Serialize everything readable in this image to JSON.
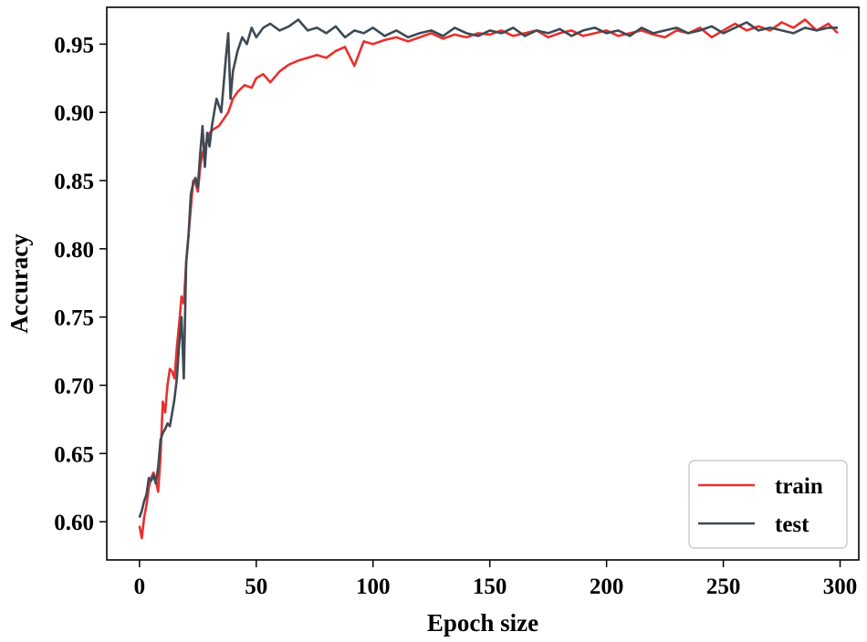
{
  "chart_data": {
    "type": "line",
    "title": "",
    "xlabel": "Epoch size",
    "ylabel": "Accuracy",
    "xlim": [
      -14,
      308
    ],
    "ylim": [
      0.572,
      0.977
    ],
    "xticks": [
      0,
      50,
      100,
      150,
      200,
      250,
      300
    ],
    "xtick_labels": [
      "0",
      "50",
      "100",
      "150",
      "200",
      "250",
      "300"
    ],
    "yticks": [
      0.6,
      0.65,
      0.7,
      0.75,
      0.8,
      0.85,
      0.9,
      0.95
    ],
    "ytick_labels": [
      "0.60",
      "0.65",
      "0.70",
      "0.75",
      "0.80",
      "0.85",
      "0.90",
      "0.95"
    ],
    "grid": false,
    "legend_position": "lower-right",
    "series": [
      {
        "name": "train",
        "color": "#e8302e",
        "x": [
          0,
          1,
          2,
          3,
          4,
          5,
          6,
          7,
          8,
          9,
          10,
          11,
          12,
          13,
          14,
          15,
          16,
          17,
          18,
          19,
          20,
          21,
          22,
          23,
          24,
          25,
          26,
          27,
          28,
          29,
          30,
          32,
          34,
          36,
          38,
          40,
          42,
          45,
          48,
          50,
          53,
          56,
          60,
          64,
          68,
          72,
          76,
          80,
          84,
          88,
          92,
          96,
          100,
          105,
          110,
          115,
          120,
          125,
          130,
          135,
          140,
          145,
          150,
          155,
          160,
          165,
          170,
          175,
          180,
          185,
          190,
          195,
          200,
          205,
          210,
          215,
          220,
          225,
          230,
          235,
          240,
          245,
          250,
          255,
          260,
          265,
          270,
          275,
          280,
          285,
          290,
          295,
          299
        ],
        "y": [
          0.597,
          0.588,
          0.603,
          0.612,
          0.625,
          0.632,
          0.636,
          0.63,
          0.622,
          0.648,
          0.688,
          0.68,
          0.7,
          0.712,
          0.71,
          0.705,
          0.728,
          0.745,
          0.765,
          0.76,
          0.79,
          0.81,
          0.83,
          0.85,
          0.848,
          0.842,
          0.86,
          0.87,
          0.875,
          0.88,
          0.885,
          0.888,
          0.89,
          0.895,
          0.9,
          0.91,
          0.915,
          0.92,
          0.918,
          0.925,
          0.928,
          0.922,
          0.93,
          0.935,
          0.938,
          0.94,
          0.942,
          0.94,
          0.945,
          0.948,
          0.934,
          0.952,
          0.95,
          0.953,
          0.955,
          0.952,
          0.955,
          0.958,
          0.954,
          0.957,
          0.955,
          0.958,
          0.957,
          0.96,
          0.956,
          0.958,
          0.96,
          0.955,
          0.958,
          0.96,
          0.956,
          0.958,
          0.96,
          0.956,
          0.958,
          0.96,
          0.957,
          0.955,
          0.96,
          0.958,
          0.962,
          0.955,
          0.96,
          0.965,
          0.96,
          0.963,
          0.96,
          0.966,
          0.962,
          0.968,
          0.96,
          0.965,
          0.958
        ]
      },
      {
        "name": "test",
        "color": "#3e4a54",
        "x": [
          0,
          1,
          2,
          3,
          4,
          5,
          6,
          7,
          8,
          9,
          10,
          11,
          12,
          13,
          14,
          15,
          16,
          17,
          18,
          19,
          20,
          21,
          22,
          23,
          24,
          25,
          26,
          27,
          28,
          29,
          30,
          31,
          32,
          33,
          34,
          35,
          36,
          37,
          38,
          39,
          40,
          42,
          44,
          46,
          48,
          50,
          53,
          56,
          60,
          64,
          68,
          72,
          76,
          80,
          84,
          88,
          92,
          96,
          100,
          105,
          110,
          115,
          120,
          125,
          130,
          135,
          140,
          145,
          150,
          155,
          160,
          165,
          170,
          175,
          180,
          185,
          190,
          195,
          200,
          205,
          210,
          215,
          220,
          225,
          230,
          235,
          240,
          245,
          250,
          255,
          260,
          265,
          270,
          275,
          280,
          285,
          290,
          295,
          299
        ],
        "y": [
          0.603,
          0.608,
          0.615,
          0.62,
          0.632,
          0.63,
          0.634,
          0.628,
          0.64,
          0.66,
          0.665,
          0.668,
          0.672,
          0.67,
          0.68,
          0.69,
          0.705,
          0.73,
          0.75,
          0.705,
          0.79,
          0.81,
          0.84,
          0.848,
          0.852,
          0.845,
          0.87,
          0.89,
          0.86,
          0.885,
          0.875,
          0.89,
          0.9,
          0.91,
          0.905,
          0.9,
          0.92,
          0.94,
          0.958,
          0.91,
          0.93,
          0.945,
          0.955,
          0.95,
          0.962,
          0.955,
          0.962,
          0.965,
          0.96,
          0.963,
          0.968,
          0.96,
          0.962,
          0.958,
          0.963,
          0.955,
          0.96,
          0.958,
          0.962,
          0.956,
          0.96,
          0.955,
          0.958,
          0.96,
          0.956,
          0.962,
          0.958,
          0.956,
          0.96,
          0.958,
          0.962,
          0.956,
          0.96,
          0.958,
          0.961,
          0.956,
          0.96,
          0.962,
          0.958,
          0.96,
          0.956,
          0.962,
          0.958,
          0.96,
          0.962,
          0.958,
          0.96,
          0.963,
          0.958,
          0.962,
          0.966,
          0.96,
          0.962,
          0.96,
          0.958,
          0.962,
          0.96,
          0.962,
          0.962
        ]
      }
    ]
  }
}
